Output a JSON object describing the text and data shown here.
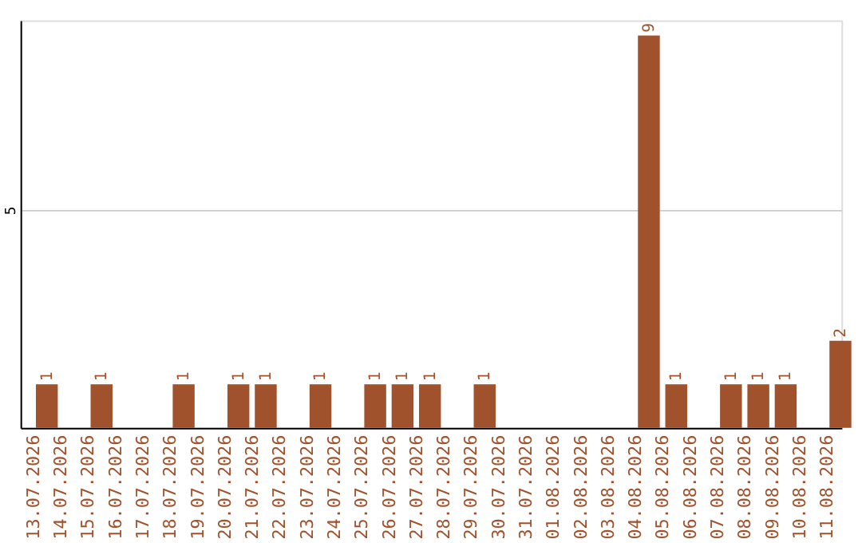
{
  "chart_data": {
    "type": "bar",
    "categories": [
      "13.07.2026",
      "14.07.2026",
      "15.07.2026",
      "16.07.2026",
      "17.07.2026",
      "18.07.2026",
      "19.07.2026",
      "20.07.2026",
      "21.07.2026",
      "22.07.2026",
      "23.07.2026",
      "24.07.2026",
      "25.07.2026",
      "26.07.2026",
      "27.07.2026",
      "28.07.2026",
      "29.07.2026",
      "30.07.2026",
      "31.07.2026",
      "01.08.2026",
      "02.08.2026",
      "03.08.2026",
      "04.08.2026",
      "05.08.2026",
      "06.08.2026",
      "07.08.2026",
      "08.08.2026",
      "09.08.2026",
      "10.08.2026",
      "11.08.2026"
    ],
    "values": [
      1,
      null,
      1,
      null,
      null,
      1,
      null,
      1,
      1,
      null,
      1,
      null,
      1,
      1,
      1,
      null,
      1,
      null,
      null,
      null,
      null,
      null,
      9,
      1,
      null,
      1,
      1,
      1,
      null,
      2
    ],
    "color": "#a0522d",
    "ylim": [
      0,
      9.35
    ],
    "yticks": [
      5
    ],
    "grid": "y",
    "data_labels": true
  }
}
